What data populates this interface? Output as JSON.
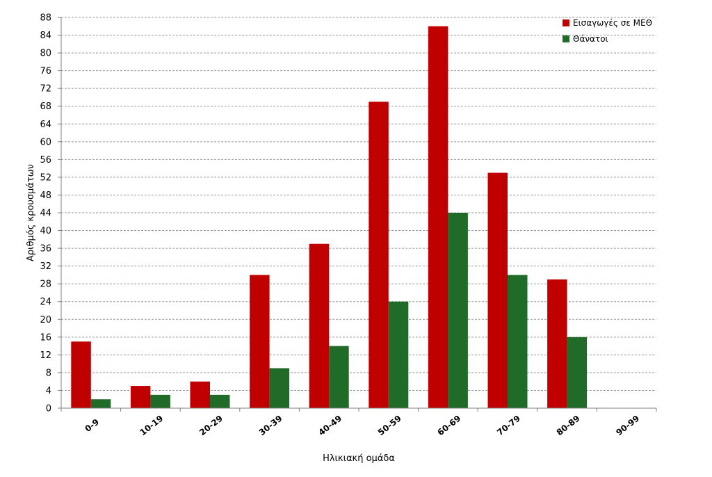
{
  "chart_data": {
    "type": "bar",
    "categories": [
      "0-9",
      "10-19",
      "20-29",
      "30-39",
      "40-49",
      "50-59",
      "60-69",
      "70-79",
      "80-89",
      "90-99"
    ],
    "series": [
      {
        "name": "Εισαγωγές σε ΜΕΘ",
        "values": [
          15,
          5,
          6,
          30,
          37,
          69,
          86,
          53,
          29,
          0
        ],
        "color": "#c00000"
      },
      {
        "name": "Θάνατοι",
        "values": [
          2,
          3,
          3,
          9,
          14,
          24,
          44,
          30,
          16,
          0
        ],
        "color": "#1f6b27"
      }
    ],
    "xlabel": "Ηλικιακή ομάδα",
    "ylabel": "Αριθμός κρουσμάτων",
    "ylim": [
      0,
      88
    ],
    "ytick_step": 4,
    "grid": true,
    "legend_position": "top-right"
  }
}
